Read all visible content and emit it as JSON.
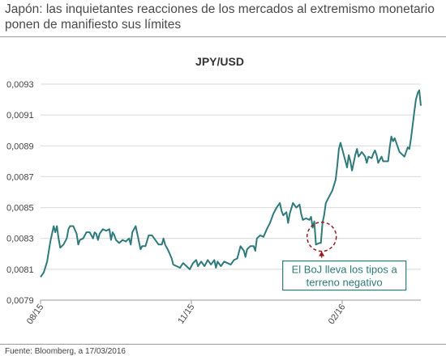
{
  "header": {
    "headline": "Japón: las inquietantes reacciones de los mercados al extremismo monetario ponen de manifiesto sus límites"
  },
  "footer": {
    "source": "Fuente: Bloomberg, a 17/03/2016"
  },
  "colors": {
    "line": "#2f7a7b",
    "annotation_circle": "#9b1b1b",
    "gridline": "#d9d9d9",
    "axis": "#999999"
  },
  "chart_data": {
    "type": "line",
    "title": "JPY/USD",
    "xlabel": "",
    "ylabel": "",
    "ylim": [
      0.0079,
      0.0093
    ],
    "grid": "horizontal",
    "y_ticks": [
      "0,0079",
      "0,0081",
      "0,0083",
      "0,0085",
      "0,0087",
      "0,0089",
      "0,0091",
      "0,0093"
    ],
    "y_tick_values": [
      0.0079,
      0.0081,
      0.0083,
      0.0085,
      0.0087,
      0.0089,
      0.0091,
      0.0093
    ],
    "x_ticks": [
      {
        "label": "08/15",
        "x": 0
      },
      {
        "label": "11/15",
        "x": 92
      },
      {
        "label": "02/16",
        "x": 184
      }
    ],
    "x_range": [
      0,
      232
    ],
    "series": [
      {
        "values": [
          [
            0,
            0.00805
          ],
          [
            2,
            0.00808
          ],
          [
            4,
            0.00815
          ],
          [
            6,
            0.00828
          ],
          [
            8,
            0.00838
          ],
          [
            9,
            0.00834
          ],
          [
            10,
            0.00838
          ],
          [
            11,
            0.0083
          ],
          [
            12,
            0.00824
          ],
          [
            14,
            0.00826
          ],
          [
            16,
            0.0083
          ],
          [
            17,
            0.00836
          ],
          [
            18,
            0.00838
          ],
          [
            20,
            0.00838
          ],
          [
            22,
            0.00833
          ],
          [
            23,
            0.00826
          ],
          [
            24,
            0.00829
          ],
          [
            26,
            0.0083
          ],
          [
            28,
            0.00834
          ],
          [
            30,
            0.00834
          ],
          [
            32,
            0.0083
          ],
          [
            33,
            0.00834
          ],
          [
            34,
            0.00833
          ],
          [
            35,
            0.00829
          ],
          [
            36,
            0.00833
          ],
          [
            38,
            0.00836
          ],
          [
            40,
            0.00835
          ],
          [
            42,
            0.00836
          ],
          [
            43,
            0.00829
          ],
          [
            44,
            0.00834
          ],
          [
            45,
            0.00832
          ],
          [
            46,
            0.00829
          ],
          [
            48,
            0.00827
          ],
          [
            50,
            0.00829
          ],
          [
            52,
            0.00828
          ],
          [
            54,
            0.0083
          ],
          [
            55,
            0.00826
          ],
          [
            56,
            0.00834
          ],
          [
            58,
            0.00838
          ],
          [
            59,
            0.00833
          ],
          [
            60,
            0.00828
          ],
          [
            61,
            0.00823
          ],
          [
            62,
            0.00825
          ],
          [
            64,
            0.00825
          ],
          [
            66,
            0.00832
          ],
          [
            68,
            0.00832
          ],
          [
            70,
            0.00829
          ],
          [
            72,
            0.00826
          ],
          [
            74,
            0.00826
          ],
          [
            75,
            0.0083
          ],
          [
            76,
            0.00826
          ],
          [
            78,
            0.00822
          ],
          [
            80,
            0.00817
          ],
          [
            81,
            0.00813
          ],
          [
            83,
            0.00812
          ],
          [
            85,
            0.00811
          ],
          [
            87,
            0.00814
          ],
          [
            89,
            0.00812
          ],
          [
            91,
            0.0081
          ],
          [
            93,
            0.00814
          ],
          [
            95,
            0.00816
          ],
          [
            96,
            0.00812
          ],
          [
            98,
            0.00815
          ],
          [
            100,
            0.00812
          ],
          [
            102,
            0.00816
          ],
          [
            104,
            0.00813
          ],
          [
            106,
            0.00816
          ],
          [
            107,
            0.00811
          ],
          [
            108,
            0.00815
          ],
          [
            110,
            0.00812
          ],
          [
            112,
            0.00815
          ],
          [
            114,
            0.00814
          ],
          [
            116,
            0.00813
          ],
          [
            118,
            0.00816
          ],
          [
            120,
            0.00817
          ],
          [
            122,
            0.00825
          ],
          [
            124,
            0.00822
          ],
          [
            125,
            0.00818
          ],
          [
            126,
            0.00823
          ],
          [
            128,
            0.00825
          ],
          [
            130,
            0.00825
          ],
          [
            131,
            0.00822
          ],
          [
            132,
            0.0083
          ],
          [
            134,
            0.00832
          ],
          [
            136,
            0.00831
          ],
          [
            138,
            0.00836
          ],
          [
            140,
            0.0084
          ],
          [
            142,
            0.00846
          ],
          [
            144,
            0.0085
          ],
          [
            146,
            0.00853
          ],
          [
            147,
            0.00848
          ],
          [
            148,
            0.00845
          ],
          [
            150,
            0.00847
          ],
          [
            151,
            0.0084
          ],
          [
            152,
            0.00846
          ],
          [
            154,
            0.00853
          ],
          [
            156,
            0.0085
          ],
          [
            158,
            0.00852
          ],
          [
            159,
            0.00846
          ],
          [
            160,
            0.00842
          ],
          [
            162,
            0.00843
          ],
          [
            164,
            0.00842
          ],
          [
            165,
            0.00844
          ],
          [
            166,
            0.00837
          ],
          [
            167,
            0.00841
          ],
          [
            168,
            0.00826
          ],
          [
            170,
            0.00827
          ],
          [
            171,
            0.00827
          ],
          [
            172,
            0.0084
          ],
          [
            173,
            0.00845
          ],
          [
            174,
            0.00853
          ],
          [
            176,
            0.00857
          ],
          [
            178,
            0.00861
          ],
          [
            180,
            0.00868
          ],
          [
            181,
            0.00877
          ],
          [
            182,
            0.00888
          ],
          [
            183,
            0.00892
          ],
          [
            184,
            0.00888
          ],
          [
            186,
            0.0088
          ],
          [
            187,
            0.00876
          ],
          [
            188,
            0.00884
          ],
          [
            189,
            0.0088
          ],
          [
            190,
            0.00874
          ],
          [
            192,
            0.00884
          ],
          [
            193,
            0.00888
          ],
          [
            194,
            0.00883
          ],
          [
            196,
            0.00886
          ],
          [
            198,
            0.00883
          ],
          [
            199,
            0.00879
          ],
          [
            200,
            0.00883
          ],
          [
            202,
            0.00882
          ],
          [
            203,
            0.00885
          ],
          [
            204,
            0.00887
          ],
          [
            205,
            0.00884
          ],
          [
            206,
            0.00879
          ],
          [
            208,
            0.00883
          ],
          [
            209,
            0.0088
          ],
          [
            210,
            0.0088
          ],
          [
            212,
            0.0088
          ],
          [
            213,
            0.00889
          ],
          [
            214,
            0.00896
          ],
          [
            215,
            0.00893
          ],
          [
            216,
            0.00895
          ],
          [
            218,
            0.00889
          ],
          [
            219,
            0.00886
          ],
          [
            220,
            0.00885
          ],
          [
            222,
            0.00883
          ],
          [
            224,
            0.00889
          ],
          [
            225,
            0.00888
          ],
          [
            226,
            0.00895
          ],
          [
            228,
            0.00912
          ],
          [
            229,
            0.0092
          ],
          [
            230,
            0.00924
          ],
          [
            231,
            0.00926
          ],
          [
            232,
            0.00916
          ]
        ]
      }
    ],
    "annotation": {
      "text_lines": [
        "El BoJ lleva los tipos a",
        "terreno negativo"
      ],
      "target_x": 170,
      "target_y": 0.00829
    }
  }
}
